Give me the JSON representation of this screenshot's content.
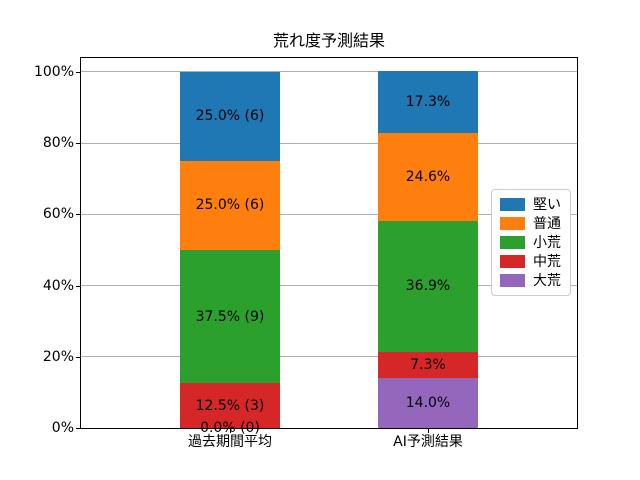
{
  "chart_data": {
    "type": "bar",
    "subtype": "stacked-percentage",
    "title": "荒れ度予測結果",
    "categories": [
      "過去期間平均",
      "AI予測結果"
    ],
    "ytick_labels": [
      "0%",
      "20%",
      "40%",
      "60%",
      "80%",
      "100%"
    ],
    "ylim": [
      0,
      100
    ],
    "grid": "horizontal",
    "legend_position": "center-right",
    "series_bottom_to_top": [
      {
        "name": "大荒",
        "color": "#9467bd",
        "values": [
          0.0,
          14.0
        ],
        "labels": [
          "0.0% (0)",
          "14.0%"
        ]
      },
      {
        "name": "中荒",
        "color": "#d62728",
        "values": [
          12.5,
          7.3
        ],
        "labels": [
          "12.5% (3)",
          "7.3%"
        ]
      },
      {
        "name": "小荒",
        "color": "#2ca02c",
        "values": [
          37.5,
          36.9
        ],
        "labels": [
          "37.5% (9)",
          "36.9%"
        ]
      },
      {
        "name": "普通",
        "color": "#ff7f0e",
        "values": [
          25.0,
          24.6
        ],
        "labels": [
          "25.0% (6)",
          "24.6%"
        ]
      },
      {
        "name": "堅い",
        "color": "#1f77b4",
        "values": [
          25.0,
          17.3
        ],
        "labels": [
          "25.0% (6)",
          "17.3%"
        ]
      }
    ],
    "legend_labels_top_to_bottom": [
      "堅い",
      "普通",
      "小荒",
      "中荒",
      "大荒"
    ],
    "colors": {
      "grid": "#b0b0b0",
      "axis": "#000000",
      "label_text": "#000000",
      "legend_border": "#cccccc",
      "background": "#ffffff"
    }
  }
}
